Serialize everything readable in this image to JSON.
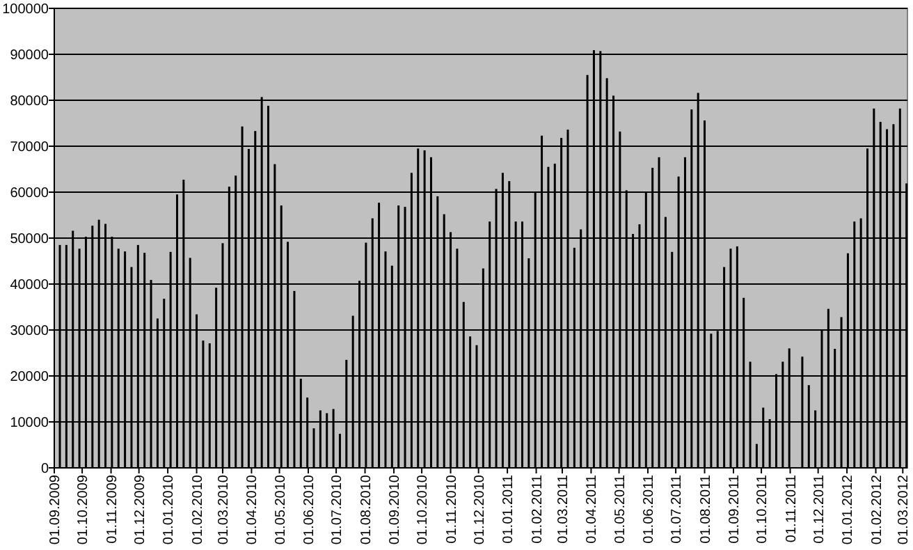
{
  "chart_data": {
    "type": "bar",
    "color": "#000000",
    "grid": "y",
    "x": [
      "2009-09-07",
      "2009-09-14",
      "2009-09-21",
      "2009-09-28",
      "2009-10-05",
      "2009-10-12",
      "2009-10-19",
      "2009-10-26",
      "2009-11-02",
      "2009-11-09",
      "2009-11-16",
      "2009-11-23",
      "2009-11-30",
      "2009-12-07",
      "2009-12-14",
      "2009-12-21",
      "2009-12-28",
      "2010-01-04",
      "2010-01-11",
      "2010-01-18",
      "2010-01-25",
      "2010-02-01",
      "2010-02-08",
      "2010-02-15",
      "2010-02-22",
      "2010-03-01",
      "2010-03-08",
      "2010-03-15",
      "2010-03-22",
      "2010-03-29",
      "2010-04-05",
      "2010-04-12",
      "2010-04-19",
      "2010-04-26",
      "2010-05-03",
      "2010-05-10",
      "2010-05-17",
      "2010-05-24",
      "2010-05-31",
      "2010-06-07",
      "2010-06-14",
      "2010-06-21",
      "2010-06-28",
      "2010-07-05",
      "2010-07-12",
      "2010-07-19",
      "2010-07-26",
      "2010-08-02",
      "2010-08-09",
      "2010-08-16",
      "2010-08-23",
      "2010-08-30",
      "2010-09-06",
      "2010-09-13",
      "2010-09-20",
      "2010-09-27",
      "2010-10-04",
      "2010-10-11",
      "2010-10-18",
      "2010-10-25",
      "2010-11-01",
      "2010-11-08",
      "2010-11-15",
      "2010-11-22",
      "2010-11-29",
      "2010-12-06",
      "2010-12-13",
      "2010-12-20",
      "2010-12-27",
      "2011-01-03",
      "2011-01-10",
      "2011-01-17",
      "2011-01-24",
      "2011-01-31",
      "2011-02-07",
      "2011-02-14",
      "2011-02-21",
      "2011-02-28",
      "2011-03-07",
      "2011-03-14",
      "2011-03-21",
      "2011-03-28",
      "2011-04-04",
      "2011-04-11",
      "2011-04-18",
      "2011-04-25",
      "2011-05-02",
      "2011-05-09",
      "2011-05-16",
      "2011-05-23",
      "2011-05-30",
      "2011-06-06",
      "2011-06-13",
      "2011-06-20",
      "2011-06-27",
      "2011-07-04",
      "2011-07-11",
      "2011-07-18",
      "2011-07-25",
      "2011-08-01",
      "2011-08-08",
      "2011-08-15",
      "2011-08-22",
      "2011-08-29",
      "2011-09-05",
      "2011-09-12",
      "2011-09-19",
      "2011-09-26",
      "2011-10-03",
      "2011-10-10",
      "2011-10-17",
      "2011-10-24",
      "2011-10-31",
      "2011-11-07",
      "2011-11-14",
      "2011-11-21",
      "2011-11-28",
      "2011-12-05",
      "2011-12-12",
      "2011-12-19",
      "2011-12-26",
      "2012-01-02",
      "2012-01-09",
      "2012-01-16",
      "2012-01-23",
      "2012-01-30",
      "2012-02-06",
      "2012-02-13",
      "2012-02-20",
      "2012-02-27",
      "2012-03-05"
    ],
    "values": [
      48500,
      48500,
      51600,
      47700,
      50300,
      52700,
      54000,
      53100,
      50300,
      47700,
      47100,
      43700,
      48500,
      46800,
      40900,
      32500,
      36800,
      47000,
      59500,
      62700,
      45700,
      33400,
      27700,
      27100,
      39200,
      48900,
      61200,
      63600,
      74300,
      69400,
      73300,
      80700,
      78800,
      66100,
      57100,
      49200,
      38500,
      19400,
      15300,
      8600,
      12500,
      11900,
      12800,
      7400,
      23500,
      33100,
      40700,
      49000,
      54300,
      57700,
      47100,
      44000,
      57100,
      56800,
      64200,
      69500,
      69100,
      67600,
      59100,
      55200,
      51300,
      47700,
      36100,
      28600,
      26700,
      43400,
      53600,
      60700,
      64200,
      62400,
      53600,
      53600,
      45600,
      59900,
      72300,
      65500,
      66200,
      71800,
      73600,
      47900,
      51900,
      85500,
      90900,
      90700,
      84800,
      81000,
      73200,
      60400,
      50900,
      53000,
      60000,
      65300,
      67600,
      54600,
      47000,
      63400,
      67600,
      78000,
      81600,
      75600,
      29200,
      29800,
      43700,
      47700,
      48200,
      37000,
      23100,
      5200,
      13100,
      10600,
      20400,
      23100,
      26000,
      null,
      24200,
      18000,
      12500,
      29900,
      34600,
      25900,
      32800,
      46700,
      53600,
      54300,
      69500,
      78200,
      75300,
      73700,
      74800,
      78200,
      61900
    ],
    "xlim": [
      "2009-09-01",
      "2012-03-06"
    ],
    "xticks": [
      {
        "value": "2009-09-01",
        "label": "01.09.2009"
      },
      {
        "value": "2009-10-01",
        "label": "01.10.2009"
      },
      {
        "value": "2009-11-01",
        "label": "01.11.2009"
      },
      {
        "value": "2009-12-01",
        "label": "01.12.2009"
      },
      {
        "value": "2010-01-01",
        "label": "01.01.2010"
      },
      {
        "value": "2010-02-01",
        "label": "01.02.2010"
      },
      {
        "value": "2010-03-01",
        "label": "01.03.2010"
      },
      {
        "value": "2010-04-01",
        "label": "01.04.2010"
      },
      {
        "value": "2010-05-01",
        "label": "01.05.2010"
      },
      {
        "value": "2010-06-01",
        "label": "01.06.2010"
      },
      {
        "value": "2010-07-01",
        "label": "01.07.2010"
      },
      {
        "value": "2010-08-01",
        "label": "01.08.2010"
      },
      {
        "value": "2010-09-01",
        "label": "01.09.2010"
      },
      {
        "value": "2010-10-01",
        "label": "01.10.2010"
      },
      {
        "value": "2010-11-01",
        "label": "01.11.2010"
      },
      {
        "value": "2010-12-01",
        "label": "01.12.2010"
      },
      {
        "value": "2011-01-01",
        "label": "01.01.2011"
      },
      {
        "value": "2011-02-01",
        "label": "01.02.2011"
      },
      {
        "value": "2011-03-01",
        "label": "01.03.2011"
      },
      {
        "value": "2011-04-01",
        "label": "01.04.2011"
      },
      {
        "value": "2011-05-01",
        "label": "01.05.2011"
      },
      {
        "value": "2011-06-01",
        "label": "01.06.2011"
      },
      {
        "value": "2011-07-01",
        "label": "01.07.2011"
      },
      {
        "value": "2011-08-01",
        "label": "01.08.2011"
      },
      {
        "value": "2011-09-01",
        "label": "01.09.2011"
      },
      {
        "value": "2011-10-01",
        "label": "01.10.2011"
      },
      {
        "value": "2011-11-01",
        "label": "01.11.2011"
      },
      {
        "value": "2011-12-01",
        "label": "01.12.2011"
      },
      {
        "value": "2012-01-01",
        "label": "01.01.2012"
      },
      {
        "value": "2012-02-01",
        "label": "01.02.2012"
      },
      {
        "value": "2012-03-01",
        "label": "01.03.2012"
      }
    ],
    "ylim": [
      0,
      100000
    ],
    "yticks": [
      0,
      10000,
      20000,
      30000,
      40000,
      50000,
      60000,
      70000,
      80000,
      90000,
      100000
    ]
  }
}
